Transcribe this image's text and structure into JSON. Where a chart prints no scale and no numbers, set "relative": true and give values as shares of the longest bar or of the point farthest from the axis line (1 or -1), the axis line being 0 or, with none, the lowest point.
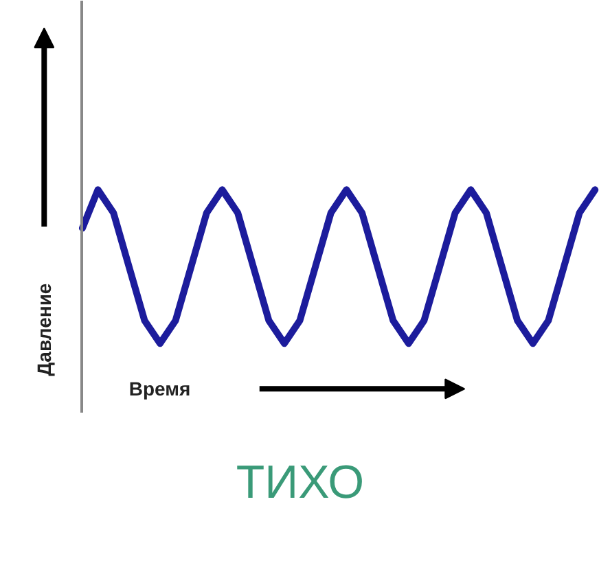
{
  "chart_data": {
    "type": "line",
    "title": "ТИХО",
    "xlabel": "Время",
    "ylabel": "Давление",
    "relative": true,
    "categories": [
      null,
      null,
      null,
      null,
      null,
      null,
      null,
      null,
      null,
      null,
      null,
      null,
      null,
      null,
      null,
      null,
      null,
      null,
      null,
      null,
      null,
      null,
      null,
      null,
      null,
      null,
      null,
      null,
      null,
      null,
      null,
      null,
      null,
      null
    ],
    "series": [
      {
        "color": "#1c1c9c",
        "values": [
          0.75,
          1,
          0.85,
          0.5,
          0.15,
          0,
          0.15,
          0.5,
          0.85,
          1,
          0.85,
          0.5,
          0.15,
          0,
          0.15,
          0.5,
          0.85,
          1,
          0.85,
          0.5,
          0.15,
          0,
          0.15,
          0.5,
          0.85,
          1,
          0.85,
          0.5,
          0.15,
          0,
          0.15,
          0.5,
          0.85,
          1
        ]
      }
    ]
  }
}
